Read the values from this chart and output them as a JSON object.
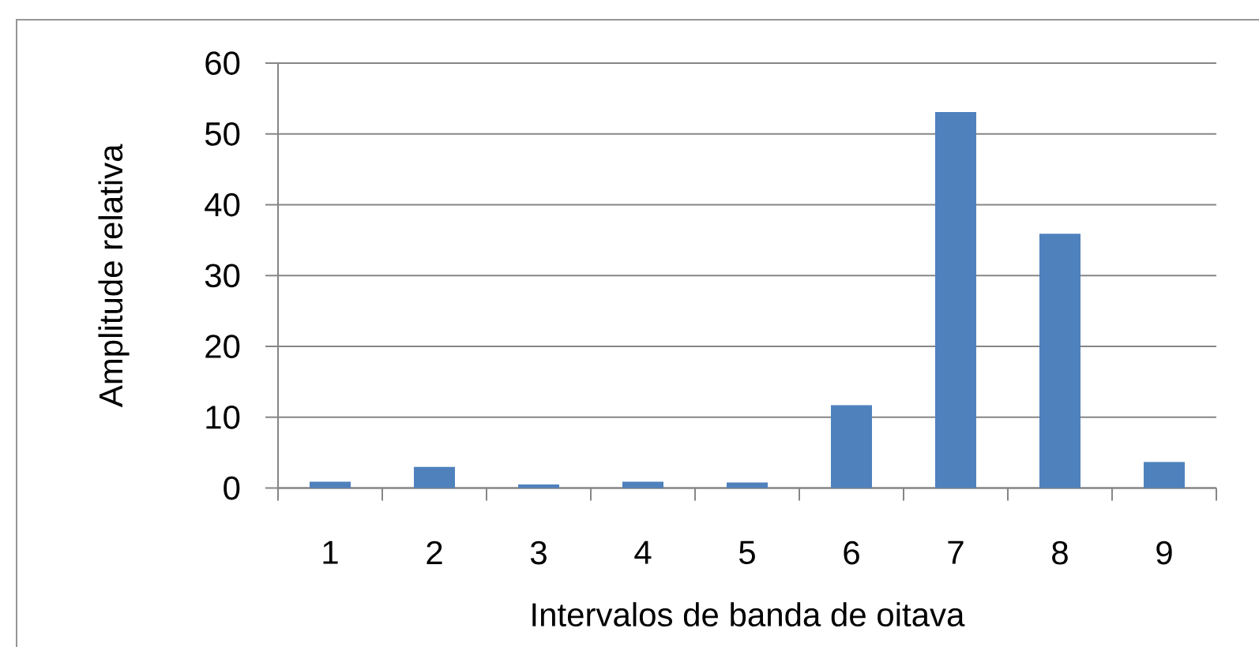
{
  "chart_data": {
    "type": "bar",
    "xlabel": "Intervalos de banda de oitava",
    "ylabel": "Amplitude relativa",
    "categories": [
      "1",
      "2",
      "3",
      "4",
      "5",
      "6",
      "7",
      "8",
      "9"
    ],
    "values": [
      0.9,
      3.0,
      0.5,
      0.9,
      0.8,
      11.7,
      53.1,
      35.9,
      3.7
    ],
    "color": "#4f81bd",
    "ylim": [
      0,
      60
    ],
    "yticks": [
      0,
      10,
      20,
      30,
      40,
      50,
      60
    ],
    "grid": "y"
  }
}
